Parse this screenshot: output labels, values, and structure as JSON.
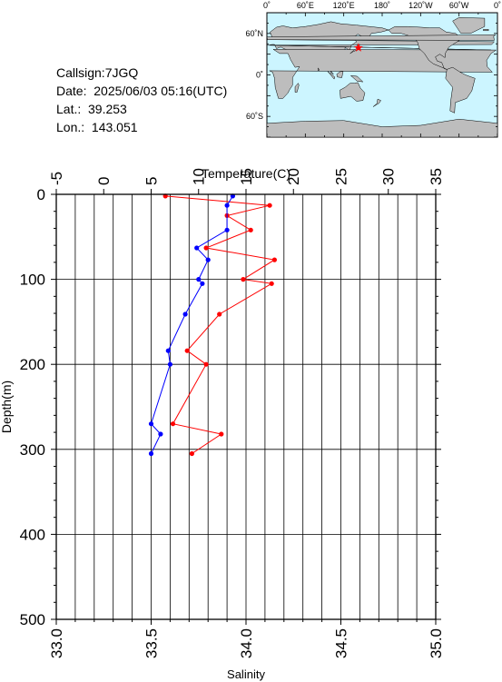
{
  "station": {
    "callsign": "Callsign:7JGQ",
    "date": "Date:  2025/06/03 05:16(UTC)",
    "lat": "Lat.:  39.253",
    "lon": "Lon.:  143.051"
  },
  "map": {
    "top_labels": [
      "0˚",
      "60˚E",
      "120˚E",
      "180˚",
      "120˚W",
      "60˚W",
      "0˚"
    ],
    "lat_labels": [
      "60˚N",
      "0˚",
      "60˚S"
    ],
    "ocean_color": "#ccf5ff",
    "land_color": "#bdbdbd",
    "marker": {
      "lat": 39.253,
      "lon": 143.051,
      "color": "#ff0000"
    }
  },
  "chart_data": {
    "type": "line",
    "ylabel": "Depth(m)",
    "xlabel_top": "Temperature(C)",
    "xlabel_bottom": "Salinity",
    "ylim": [
      0,
      500
    ],
    "yticks": [
      "0",
      "100",
      "200",
      "300",
      "400",
      "500"
    ],
    "temperature_range": [
      -5,
      35
    ],
    "temperature_ticks": [
      "-5",
      "0",
      "5",
      "10",
      "15",
      "20",
      "25",
      "30",
      "35"
    ],
    "salinity_range": [
      33.0,
      35.0
    ],
    "salinity_ticks": [
      "33.0",
      "33.5",
      "34.0",
      "34.5",
      "35.0"
    ],
    "grid": true,
    "series": [
      {
        "axis": "temperature",
        "color": "#ff0000",
        "points": [
          {
            "depth": 2,
            "value": 6.5
          },
          {
            "depth": 13,
            "value": 17.5
          },
          {
            "depth": 25,
            "value": 13.0
          },
          {
            "depth": 42,
            "value": 15.5
          },
          {
            "depth": 63,
            "value": 10.8
          },
          {
            "depth": 77,
            "value": 18.0
          },
          {
            "depth": 100,
            "value": 14.7
          },
          {
            "depth": 105,
            "value": 17.7
          },
          {
            "depth": 141,
            "value": 12.2
          },
          {
            "depth": 184,
            "value": 8.8
          },
          {
            "depth": 200,
            "value": 10.8
          },
          {
            "depth": 270,
            "value": 7.3
          },
          {
            "depth": 282,
            "value": 12.4
          },
          {
            "depth": 305,
            "value": 9.3
          }
        ]
      },
      {
        "axis": "salinity",
        "color": "#0000ff",
        "points": [
          {
            "depth": 2,
            "value": 33.93
          },
          {
            "depth": 13,
            "value": 33.9
          },
          {
            "depth": 42,
            "value": 33.9
          },
          {
            "depth": 63,
            "value": 33.74
          },
          {
            "depth": 77,
            "value": 33.8
          },
          {
            "depth": 100,
            "value": 33.75
          },
          {
            "depth": 105,
            "value": 33.77
          },
          {
            "depth": 141,
            "value": 33.68
          },
          {
            "depth": 184,
            "value": 33.59
          },
          {
            "depth": 200,
            "value": 33.6
          },
          {
            "depth": 270,
            "value": 33.5
          },
          {
            "depth": 282,
            "value": 33.55
          },
          {
            "depth": 305,
            "value": 33.5
          }
        ]
      }
    ]
  }
}
